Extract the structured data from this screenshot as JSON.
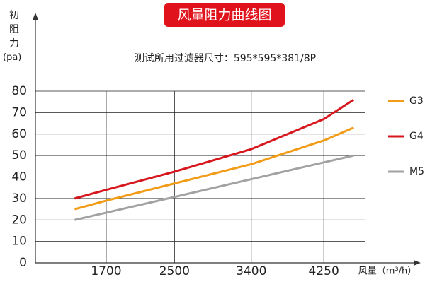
{
  "chart_data": {
    "type": "line",
    "title": "风量阻力曲线图",
    "subtitle": "测试所用过滤器尺寸：595*595*381/8P",
    "y_label": "初阻力",
    "y_unit": "(pa)",
    "x_label": "风量（m³/h）",
    "x": [
      1330,
      1700,
      2500,
      3400,
      4250,
      4600
    ],
    "series": [
      {
        "name": "G3",
        "color": "#f29b16",
        "values": [
          25,
          29,
          37,
          46,
          57,
          63
        ]
      },
      {
        "name": "G4",
        "color": "#d7171e",
        "values": [
          30,
          34,
          42.5,
          53,
          67,
          76
        ]
      },
      {
        "name": "M5",
        "color": "#a2a2a2",
        "values": [
          20,
          23.4,
          30.7,
          39,
          46.8,
          50
        ]
      }
    ],
    "xlim": [
      870,
      4730
    ],
    "xticks": [
      1700,
      2500,
      3400,
      4250
    ],
    "ylim": [
      0,
      80
    ],
    "yticks": [
      0,
      10,
      20,
      30,
      40,
      50,
      60,
      70,
      80
    ],
    "grid": true,
    "legend": "right"
  }
}
